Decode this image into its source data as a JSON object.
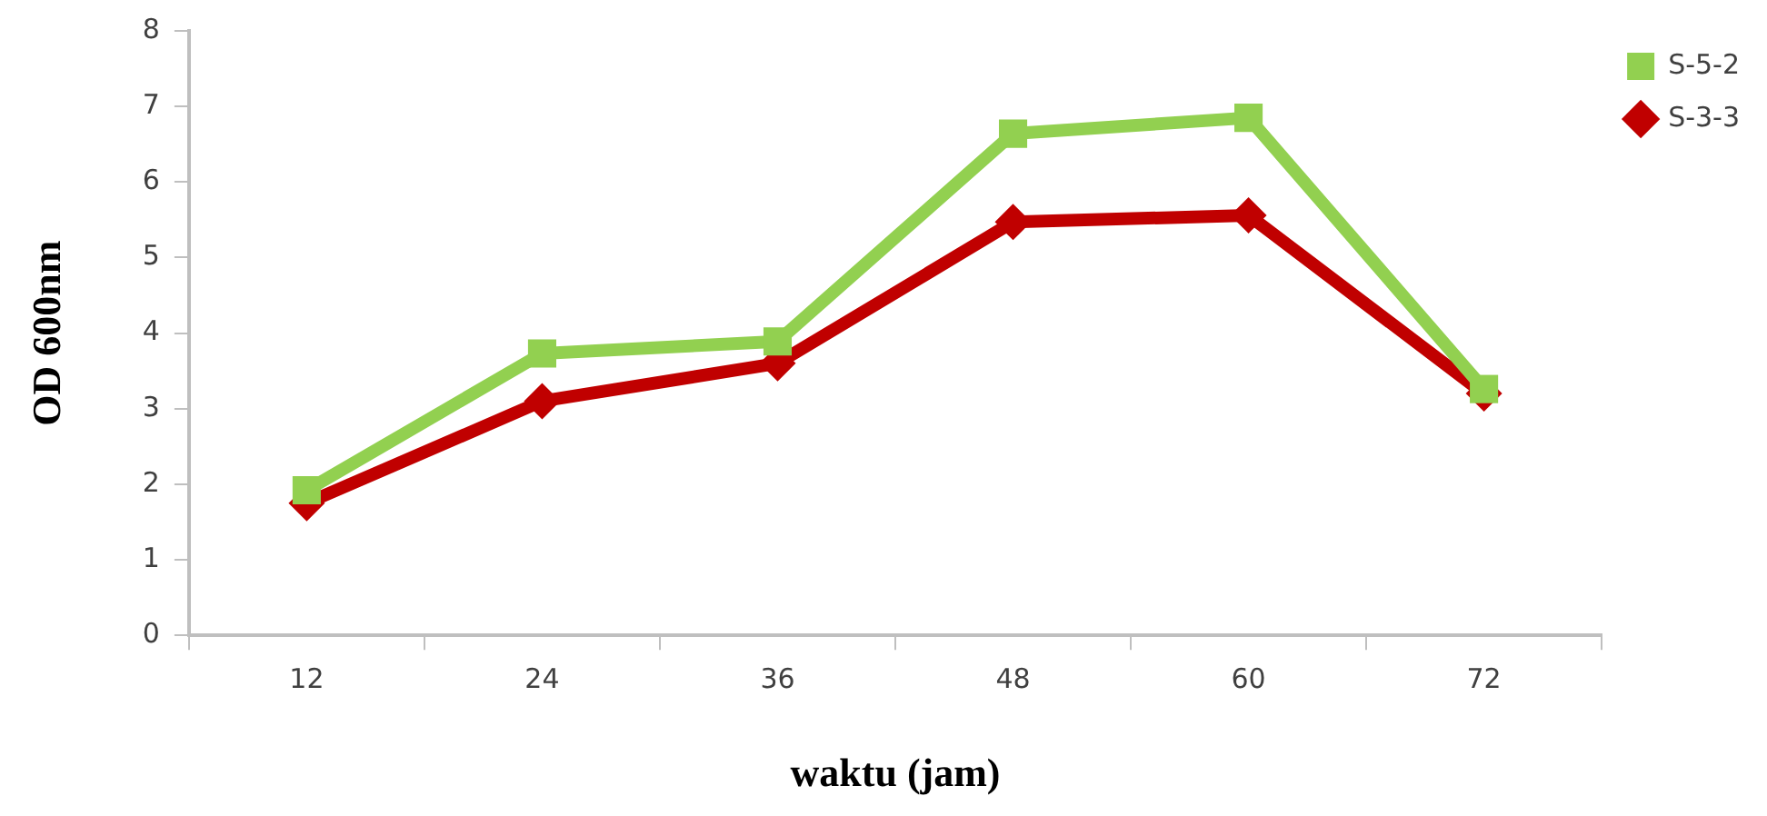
{
  "chart_data": {
    "type": "line",
    "xlabel": "waktu (jam)",
    "ylabel": "OD 600nm",
    "categories": [
      "12",
      "24",
      "36",
      "48",
      "60",
      "72"
    ],
    "series": [
      {
        "name": "S-3-3",
        "color": "#c00000",
        "marker": "diamond",
        "values": [
          1.75,
          3.1,
          3.6,
          5.47,
          5.56,
          3.2
        ]
      },
      {
        "name": "S-5-2",
        "color": "#92d050",
        "marker": "square",
        "values": [
          1.92,
          3.73,
          3.89,
          6.64,
          6.85,
          3.26
        ]
      }
    ],
    "ylim": [
      0,
      8
    ],
    "yticks": [
      0,
      1,
      2,
      3,
      4,
      5,
      6,
      7,
      8
    ],
    "grid": false,
    "legend": "top right",
    "line_style": "solid"
  }
}
